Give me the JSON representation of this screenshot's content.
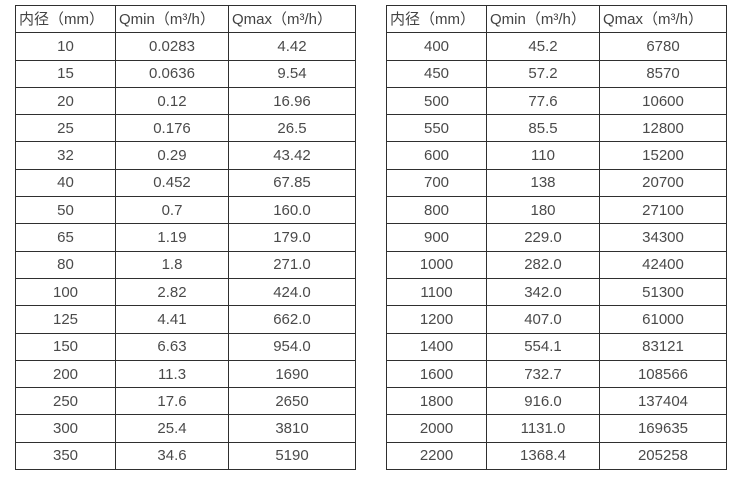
{
  "tables": [
    {
      "name": "flow-spec-table-small-diameters",
      "headers": [
        "内径（mm）",
        "Qmin（m³/h）",
        "Qmax（m³/h）"
      ],
      "rows": [
        [
          "10",
          "0.0283",
          "4.42"
        ],
        [
          "15",
          "0.0636",
          "9.54"
        ],
        [
          "20",
          "0.12",
          "16.96"
        ],
        [
          "25",
          "0.176",
          "26.5"
        ],
        [
          "32",
          "0.29",
          "43.42"
        ],
        [
          "40",
          "0.452",
          "67.85"
        ],
        [
          "50",
          "0.7",
          "160.0"
        ],
        [
          "65",
          "1.19",
          "179.0"
        ],
        [
          "80",
          "1.8",
          "271.0"
        ],
        [
          "100",
          "2.82",
          "424.0"
        ],
        [
          "125",
          "4.41",
          "662.0"
        ],
        [
          "150",
          "6.63",
          "954.0"
        ],
        [
          "200",
          "11.3",
          "1690"
        ],
        [
          "250",
          "17.6",
          "2650"
        ],
        [
          "300",
          "25.4",
          "3810"
        ],
        [
          "350",
          "34.6",
          "5190"
        ]
      ]
    },
    {
      "name": "flow-spec-table-large-diameters",
      "headers": [
        "内径（mm）",
        "Qmin（m³/h）",
        "Qmax（m³/h）"
      ],
      "rows": [
        [
          "400",
          "45.2",
          "6780"
        ],
        [
          "450",
          "57.2",
          "8570"
        ],
        [
          "500",
          "77.6",
          "10600"
        ],
        [
          "550",
          "85.5",
          "12800"
        ],
        [
          "600",
          "110",
          "15200"
        ],
        [
          "700",
          "138",
          "20700"
        ],
        [
          "800",
          "180",
          "27100"
        ],
        [
          "900",
          "229.0",
          "34300"
        ],
        [
          "1000",
          "282.0",
          "42400"
        ],
        [
          "1100",
          "342.0",
          "51300"
        ],
        [
          "1200",
          "407.0",
          "61000"
        ],
        [
          "1400",
          "554.1",
          "83121"
        ],
        [
          "1600",
          "732.7",
          "108566"
        ],
        [
          "1800",
          "916.0",
          "137404"
        ],
        [
          "2000",
          "1131.0",
          "169635"
        ],
        [
          "2200",
          "1368.4",
          "205258"
        ]
      ]
    }
  ],
  "colors": {
    "border": "#2f2f2f",
    "text": "#4a4a4a",
    "background": "#ffffff"
  }
}
